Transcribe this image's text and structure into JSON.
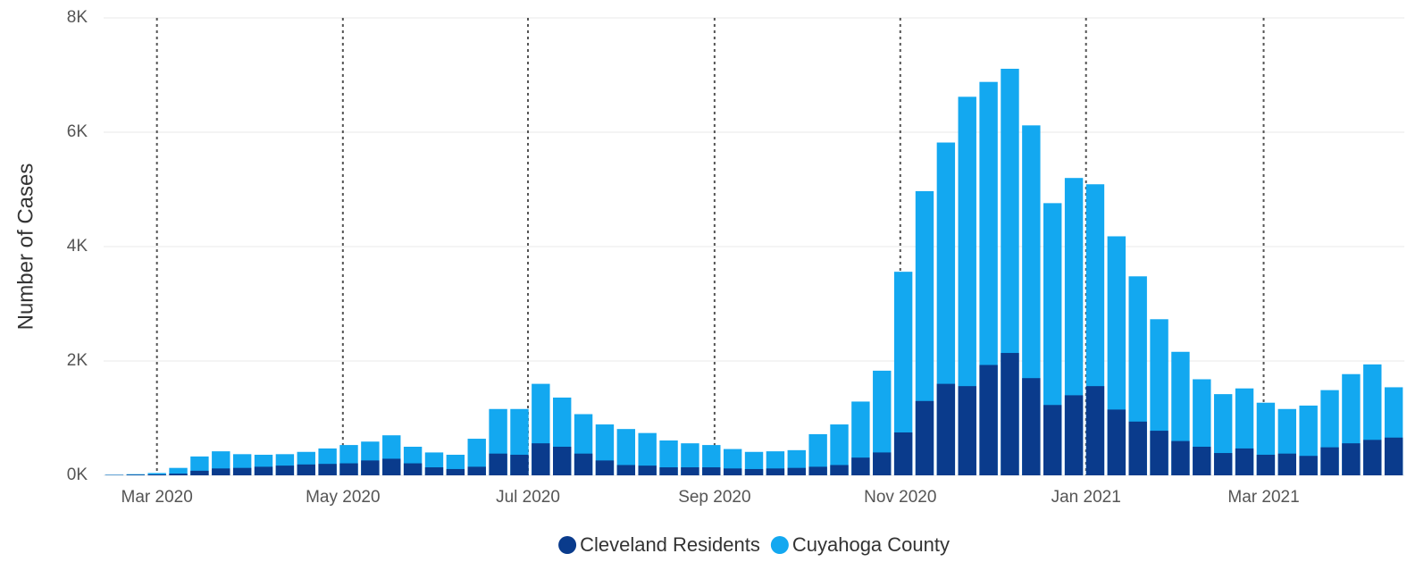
{
  "chart_data": {
    "type": "bar",
    "y_label": "Number of Cases",
    "categories": [
      null,
      null,
      null,
      null,
      null,
      null,
      null,
      null,
      null,
      null,
      null,
      null,
      null,
      null,
      null,
      null,
      null,
      null,
      null,
      null,
      null,
      null,
      null,
      null,
      null,
      null,
      null,
      null,
      null,
      null,
      null,
      null,
      null,
      null,
      null,
      null,
      null,
      null,
      null,
      null,
      null,
      null,
      null,
      null,
      null,
      null,
      null,
      null,
      null,
      null,
      null,
      null,
      null,
      null,
      null,
      null,
      null,
      null,
      null,
      null,
      null
    ],
    "series": [
      {
        "name": "Cuyahoga County",
        "color": "#13a8f0",
        "values": [
          10,
          20,
          40,
          130,
          330,
          420,
          370,
          360,
          370,
          410,
          470,
          530,
          590,
          700,
          500,
          400,
          360,
          640,
          1160,
          1160,
          1600,
          1360,
          1070,
          890,
          810,
          740,
          610,
          560,
          530,
          460,
          410,
          420,
          440,
          720,
          890,
          1290,
          1830,
          3560,
          4970,
          5820,
          6620,
          6880,
          7110,
          6120,
          4760,
          5200,
          5090,
          4180,
          3480,
          2730,
          2160,
          1680,
          1420,
          1520,
          1270,
          1160,
          1220,
          1490,
          1770,
          1940,
          1540
        ]
      },
      {
        "name": "Cleveland Residents",
        "color": "#0a3b8c",
        "values": [
          5,
          10,
          15,
          30,
          80,
          120,
          130,
          150,
          170,
          190,
          200,
          210,
          260,
          290,
          210,
          140,
          110,
          150,
          380,
          360,
          560,
          500,
          380,
          260,
          180,
          170,
          140,
          140,
          140,
          120,
          110,
          120,
          130,
          150,
          180,
          310,
          400,
          750,
          1300,
          1600,
          1560,
          1930,
          2140,
          1700,
          1230,
          1400,
          1560,
          1150,
          940,
          780,
          600,
          500,
          390,
          470,
          360,
          380,
          340,
          490,
          560,
          620,
          660
        ]
      }
    ],
    "legend_order": [
      1,
      0
    ],
    "ylim": [
      0,
      8000
    ],
    "yticks": [
      {
        "value": 0,
        "label": "0K"
      },
      {
        "value": 2000,
        "label": "2K"
      },
      {
        "value": 4000,
        "label": "4K"
      },
      {
        "value": 6000,
        "label": "6K"
      },
      {
        "value": 8000,
        "label": "8K"
      }
    ],
    "xticks": [
      {
        "value": 2.0,
        "label": "Mar 2020"
      },
      {
        "value": 10.72,
        "label": "May 2020"
      },
      {
        "value": 19.4,
        "label": "Jul 2020"
      },
      {
        "value": 28.15,
        "label": "Sep 2020"
      },
      {
        "value": 36.86,
        "label": "Nov 2020"
      },
      {
        "value": 45.57,
        "label": "Jan 2021"
      },
      {
        "value": 53.9,
        "label": "Mar 2021"
      }
    ],
    "grid": true
  }
}
